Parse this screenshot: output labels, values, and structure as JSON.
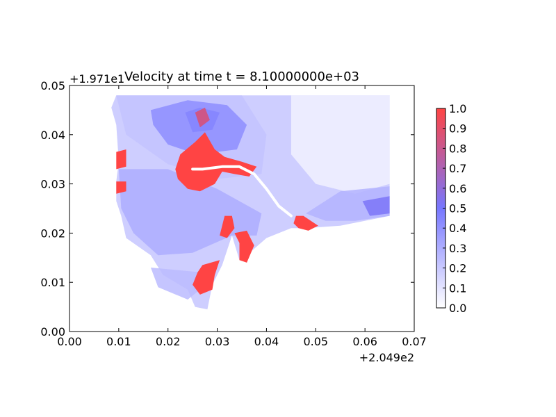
{
  "chart_data": {
    "type": "heatmap",
    "title": "Velocity at time t = 8.10000000e+03",
    "xlabel": "",
    "ylabel": "",
    "x_offset_label": "+2.049e2",
    "y_offset_label": "+1.971e1",
    "xlim": [
      0.0,
      0.07
    ],
    "ylim": [
      0.0,
      0.05
    ],
    "x_ticks": [
      "0.00",
      "0.01",
      "0.02",
      "0.03",
      "0.04",
      "0.05",
      "0.06",
      "0.07"
    ],
    "y_ticks": [
      "0.00",
      "0.01",
      "0.02",
      "0.03",
      "0.04",
      "0.05"
    ],
    "grid": false,
    "colorbar": {
      "min": 0.0,
      "max": 1.0,
      "ticks": [
        "0.0",
        "0.1",
        "0.2",
        "0.3",
        "0.4",
        "0.5",
        "0.6",
        "0.7",
        "0.8",
        "0.9",
        "1.0"
      ],
      "colors": [
        "#ffffff",
        "#7777ff",
        "#ff4444"
      ]
    },
    "domain_outline": [
      [
        0.0095,
        0.048
      ],
      [
        0.065,
        0.048
      ],
      [
        0.065,
        0.0235
      ],
      [
        0.055,
        0.0215
      ],
      [
        0.048,
        0.021
      ],
      [
        0.045,
        0.021
      ],
      [
        0.04,
        0.019
      ],
      [
        0.036,
        0.0155
      ],
      [
        0.0345,
        0.0145
      ],
      [
        0.033,
        0.0195
      ],
      [
        0.031,
        0.0135
      ],
      [
        0.029,
        0.0095
      ],
      [
        0.028,
        0.0045
      ],
      [
        0.0255,
        0.005
      ],
      [
        0.024,
        0.0085
      ],
      [
        0.019,
        0.0115
      ],
      [
        0.0165,
        0.0155
      ],
      [
        0.0115,
        0.019
      ],
      [
        0.0105,
        0.0235
      ],
      [
        0.0095,
        0.0265
      ],
      [
        0.0095,
        0.0305
      ],
      [
        0.01,
        0.0345
      ],
      [
        0.0095,
        0.042
      ],
      [
        0.0085,
        0.0455
      ]
    ],
    "regions": [
      {
        "value": 0.22,
        "points": [
          [
            0.0095,
            0.048
          ],
          [
            0.035,
            0.048
          ],
          [
            0.04,
            0.04
          ],
          [
            0.039,
            0.032
          ],
          [
            0.03,
            0.031
          ],
          [
            0.02,
            0.034
          ],
          [
            0.0115,
            0.04
          ]
        ]
      },
      {
        "value": 0.42,
        "points": [
          [
            0.0165,
            0.045
          ],
          [
            0.024,
            0.047
          ],
          [
            0.032,
            0.046
          ],
          [
            0.036,
            0.042
          ],
          [
            0.034,
            0.037
          ],
          [
            0.026,
            0.036
          ],
          [
            0.02,
            0.038
          ],
          [
            0.017,
            0.042
          ]
        ]
      },
      {
        "value": 0.3,
        "points": [
          [
            0.01,
            0.033
          ],
          [
            0.02,
            0.033
          ],
          [
            0.03,
            0.029
          ],
          [
            0.039,
            0.024
          ],
          [
            0.038,
            0.0195
          ],
          [
            0.033,
            0.0195
          ],
          [
            0.025,
            0.016
          ],
          [
            0.018,
            0.0155
          ],
          [
            0.013,
            0.02
          ],
          [
            0.0105,
            0.025
          ]
        ]
      },
      {
        "value": 0.05,
        "points": [
          [
            0.045,
            0.048
          ],
          [
            0.065,
            0.048
          ],
          [
            0.065,
            0.03
          ],
          [
            0.058,
            0.028
          ],
          [
            0.05,
            0.03
          ],
          [
            0.045,
            0.036
          ]
        ]
      },
      {
        "value": 0.28,
        "points": [
          [
            0.055,
            0.0285
          ],
          [
            0.065,
            0.0295
          ],
          [
            0.065,
            0.0235
          ],
          [
            0.058,
            0.0225
          ],
          [
            0.052,
            0.0225
          ],
          [
            0.048,
            0.024
          ]
        ]
      },
      {
        "value": 0.52,
        "points": [
          [
            0.0595,
            0.0265
          ],
          [
            0.065,
            0.0275
          ],
          [
            0.065,
            0.024
          ],
          [
            0.061,
            0.0235
          ]
        ]
      },
      {
        "value": 0.45,
        "points": [
          [
            0.0235,
            0.0445
          ],
          [
            0.0265,
            0.0455
          ],
          [
            0.0305,
            0.0445
          ],
          [
            0.029,
            0.041
          ],
          [
            0.025,
            0.0405
          ]
        ]
      },
      {
        "value": 0.25,
        "points": [
          [
            0.0165,
            0.013
          ],
          [
            0.027,
            0.012
          ],
          [
            0.0265,
            0.0085
          ],
          [
            0.024,
            0.0065
          ],
          [
            0.018,
            0.009
          ]
        ]
      }
    ],
    "hotspots": [
      {
        "value": 1.0,
        "points": [
          [
            0.0215,
            0.033
          ],
          [
            0.0225,
            0.036
          ],
          [
            0.0255,
            0.0385
          ],
          [
            0.0275,
            0.0405
          ],
          [
            0.0295,
            0.037
          ],
          [
            0.0315,
            0.0355
          ],
          [
            0.035,
            0.0345
          ],
          [
            0.038,
            0.0335
          ],
          [
            0.0365,
            0.0315
          ],
          [
            0.0335,
            0.032
          ],
          [
            0.031,
            0.0325
          ],
          [
            0.0295,
            0.03
          ],
          [
            0.0265,
            0.0285
          ],
          [
            0.024,
            0.029
          ],
          [
            0.022,
            0.031
          ]
        ]
      },
      {
        "value": 1.0,
        "points": [
          [
            0.0095,
            0.0365
          ],
          [
            0.0115,
            0.037
          ],
          [
            0.0115,
            0.0335
          ],
          [
            0.0095,
            0.033
          ]
        ]
      },
      {
        "value": 1.0,
        "points": [
          [
            0.0095,
            0.0305
          ],
          [
            0.0115,
            0.0305
          ],
          [
            0.0115,
            0.0285
          ],
          [
            0.0095,
            0.028
          ]
        ]
      },
      {
        "value": 1.0,
        "points": [
          [
            0.0305,
            0.0195
          ],
          [
            0.0315,
            0.0235
          ],
          [
            0.033,
            0.0235
          ],
          [
            0.0335,
            0.021
          ],
          [
            0.032,
            0.019
          ]
        ]
      },
      {
        "value": 1.0,
        "points": [
          [
            0.0335,
            0.02
          ],
          [
            0.036,
            0.0205
          ],
          [
            0.0375,
            0.0175
          ],
          [
            0.036,
            0.014
          ],
          [
            0.0345,
            0.0145
          ],
          [
            0.0345,
            0.018
          ]
        ]
      },
      {
        "value": 1.0,
        "points": [
          [
            0.027,
            0.0135
          ],
          [
            0.0305,
            0.0145
          ],
          [
            0.0295,
            0.0115
          ],
          [
            0.029,
            0.0085
          ],
          [
            0.0265,
            0.0075
          ],
          [
            0.025,
            0.0095
          ],
          [
            0.026,
            0.012
          ]
        ]
      },
      {
        "value": 1.0,
        "points": [
          [
            0.046,
            0.0235
          ],
          [
            0.0475,
            0.0235
          ],
          [
            0.0505,
            0.0215
          ],
          [
            0.0485,
            0.0205
          ],
          [
            0.0465,
            0.021
          ],
          [
            0.0455,
            0.022
          ]
        ]
      },
      {
        "value": 0.82,
        "points": [
          [
            0.0255,
            0.0445
          ],
          [
            0.0275,
            0.0455
          ],
          [
            0.0285,
            0.043
          ],
          [
            0.0265,
            0.0415
          ]
        ]
      }
    ],
    "channel": [
      [
        0.025,
        0.033
      ],
      [
        0.027,
        0.033
      ],
      [
        0.031,
        0.0335
      ],
      [
        0.0345,
        0.0335
      ],
      [
        0.0375,
        0.032
      ],
      [
        0.04,
        0.029
      ],
      [
        0.0425,
        0.0255
      ],
      [
        0.045,
        0.0235
      ]
    ]
  }
}
